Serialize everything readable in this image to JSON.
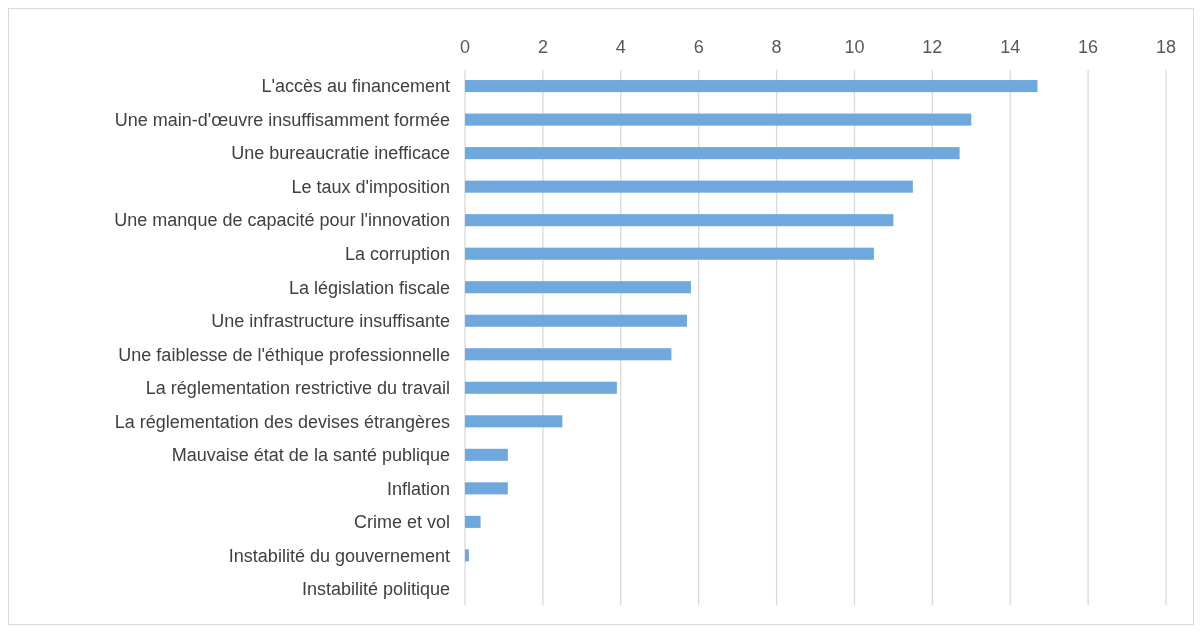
{
  "chart_data": {
    "type": "bar",
    "orientation": "horizontal",
    "categories": [
      "L'accès au financement",
      "Une main-d'œuvre insuffisamment formée",
      "Une bureaucratie inefficace",
      "Le taux d'imposition",
      "Une manque de capacité pour l'innovation",
      "La corruption",
      "La législation fiscale",
      "Une infrastructure insuffisante",
      "Une faiblesse de l'éthique professionnelle",
      "La réglementation restrictive du travail",
      "La réglementation des devises étrangères",
      "Mauvaise état de la santé publique",
      "Inflation",
      "Crime et vol",
      "Instabilité du gouvernement",
      "Instabilité politique"
    ],
    "values": [
      14.7,
      13.0,
      12.7,
      11.5,
      11.0,
      10.5,
      5.8,
      5.7,
      5.3,
      3.9,
      2.5,
      1.1,
      1.1,
      0.4,
      0.1,
      0
    ],
    "color": "#6fa8dc",
    "xlim": [
      0,
      18
    ],
    "xticks": [
      0,
      2,
      4,
      6,
      8,
      10,
      12,
      14,
      16,
      18
    ],
    "grid": "x"
  }
}
